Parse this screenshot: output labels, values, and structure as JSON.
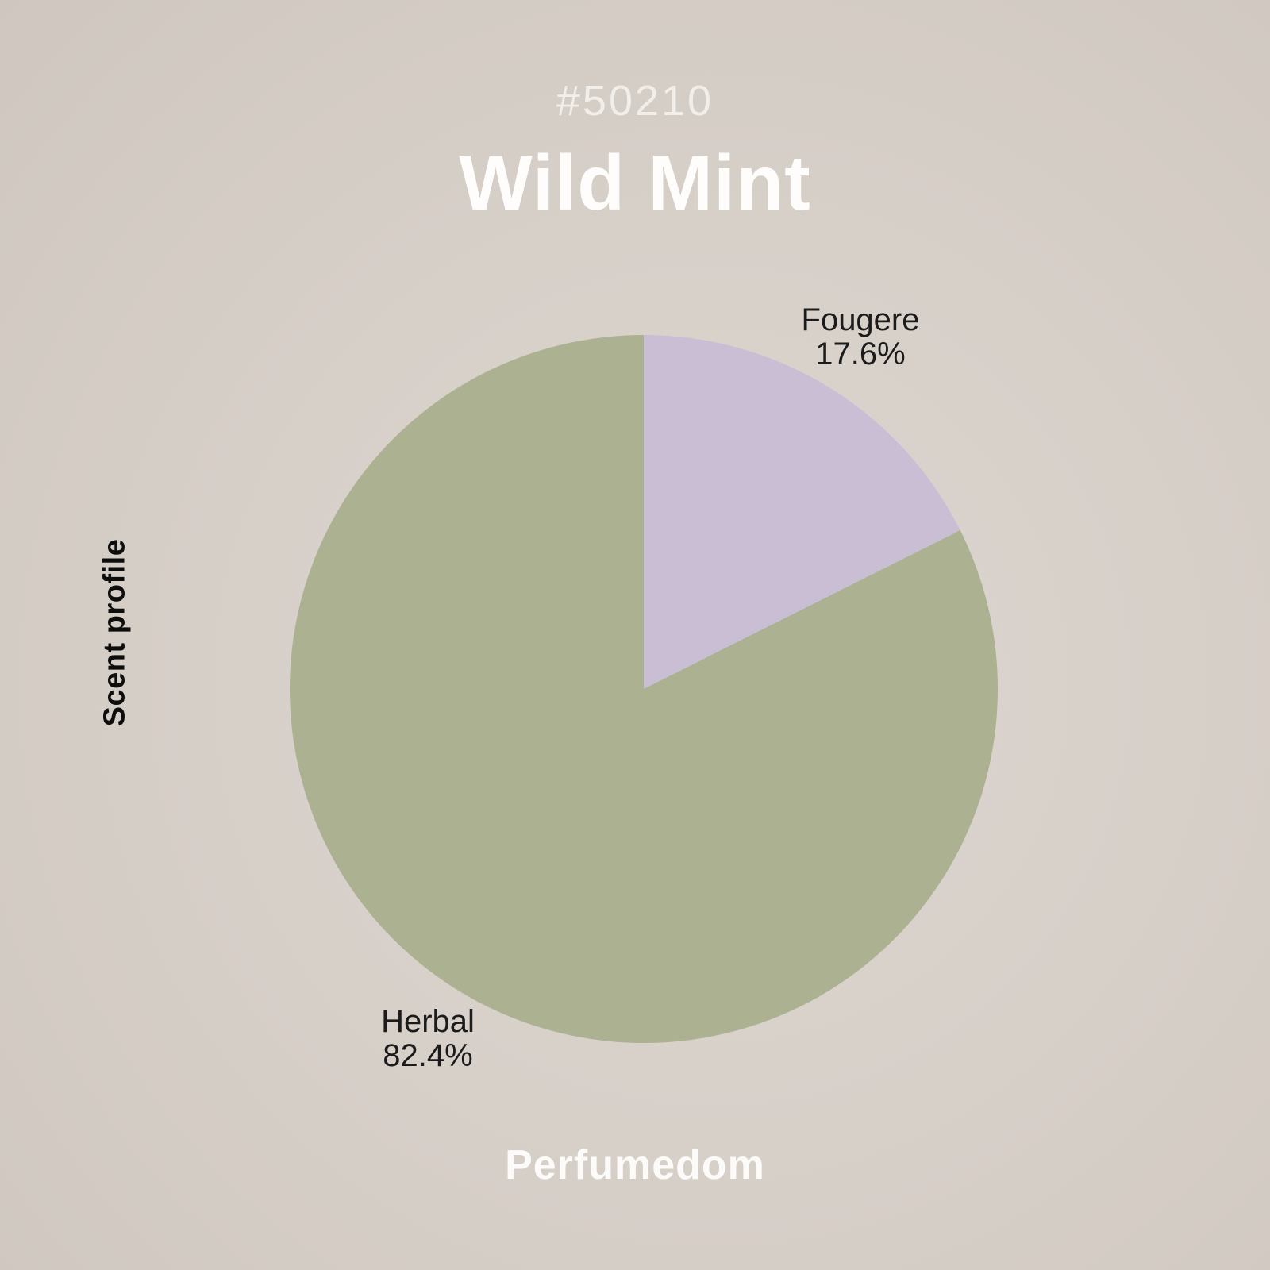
{
  "header": {
    "subtitle": "#50210",
    "title": "Wild Mint"
  },
  "axis_label": "Scent profile",
  "brand": "Perfumedom",
  "chart_data": {
    "type": "pie",
    "title": "Wild Mint",
    "subtitle": "#50210",
    "ylabel": "Scent profile",
    "start_angle_deg": 0,
    "direction": "clockwise",
    "legend": "none",
    "labels_outside": true,
    "slices": [
      {
        "label": "Fougere",
        "value": 17.6,
        "display": "17.6%",
        "color": "#c9bed3"
      },
      {
        "label": "Herbal",
        "value": 82.4,
        "display": "82.4%",
        "color": "#acb192"
      }
    ]
  },
  "colors": {
    "background_center": "#ded7d1",
    "background_mid": "#d6cfc8",
    "background_edge": "#cfc7bf",
    "subtitle_color": "#f2eeea",
    "title_color": "#fefdfb",
    "label_color": "#1b1b1b",
    "axis_label_color": "#0d0d0d",
    "brand_color": "#fcfbf9"
  }
}
